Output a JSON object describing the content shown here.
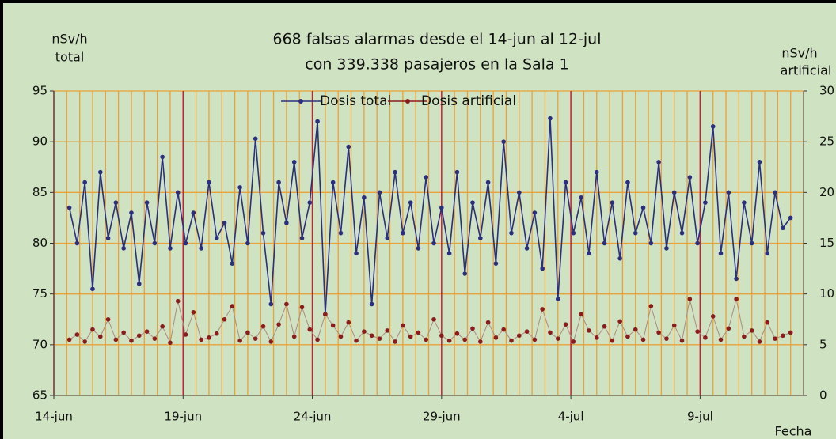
{
  "chart_data": {
    "type": "line",
    "title": [
      "668 falsas alarmas desde el 14-jun al 12-jul",
      "con 339.338 pasajeros en la Sala 1"
    ],
    "y_label": [
      "nSv/h",
      "total"
    ],
    "y2_label": [
      "nSv/h",
      "artificial"
    ],
    "x_label": "Fecha",
    "x": [
      0.6,
      0.9,
      1.2,
      1.5,
      1.8,
      2.1,
      2.4,
      2.7,
      3.0,
      3.3,
      3.6,
      3.9,
      4.2,
      4.5,
      4.8,
      5.1,
      5.4,
      5.7,
      6.0,
      6.3,
      6.6,
      6.9,
      7.2,
      7.5,
      7.8,
      8.1,
      8.4,
      8.7,
      9.0,
      9.3,
      9.6,
      9.9,
      10.2,
      10.5,
      10.8,
      11.1,
      11.4,
      11.7,
      12.0,
      12.3,
      12.6,
      12.9,
      13.2,
      13.5,
      13.8,
      14.1,
      14.4,
      14.7,
      15.0,
      15.3,
      15.6,
      15.9,
      16.2,
      16.5,
      16.8,
      17.1,
      17.4,
      17.7,
      18.0,
      18.3,
      18.6,
      18.9,
      19.2,
      19.5,
      19.8,
      20.1,
      20.4,
      20.7,
      21.0,
      21.3,
      21.6,
      21.9,
      22.2,
      22.5,
      22.8,
      23.1,
      23.4,
      23.7,
      24.0,
      24.3,
      24.6,
      24.9,
      25.2,
      25.5,
      25.8,
      26.1,
      26.4,
      26.7,
      27.0,
      27.3,
      27.6,
      27.9,
      28.2,
      28.5
    ],
    "series": [
      {
        "name": "Dosis total",
        "color": "#2b2f80",
        "axis": "y",
        "values": [
          83.5,
          80,
          86,
          75.5,
          87,
          80.5,
          84,
          79.5,
          83,
          76,
          84,
          80,
          88.5,
          79.5,
          85,
          80,
          83,
          79.5,
          86,
          80.5,
          82,
          78,
          85.5,
          80,
          90.3,
          81,
          74,
          86,
          82,
          88,
          80.5,
          84,
          92,
          73,
          86,
          81,
          89.5,
          79,
          84.5,
          74,
          85,
          80.5,
          87,
          81,
          84,
          79.5,
          86.5,
          80,
          83.5,
          79,
          87,
          77,
          84,
          80.5,
          86,
          78,
          90,
          81,
          85,
          79.5,
          83,
          77.5,
          92.3,
          74.5,
          86,
          81,
          84.5,
          79,
          87,
          80,
          84,
          78.5,
          86,
          81,
          83.5,
          80,
          88,
          79.5,
          85,
          81,
          86.5,
          80,
          84,
          91.5,
          79,
          85,
          76.5,
          84,
          80,
          88,
          79,
          85,
          81.5,
          82.5
        ]
      },
      {
        "name": "Dosis artificial",
        "color": "#8b1c1c",
        "axis": "y2",
        "values": [
          5.5,
          6,
          5.3,
          6.5,
          5.8,
          7.5,
          5.5,
          6.2,
          5.4,
          5.9,
          6.3,
          5.6,
          6.8,
          5.2,
          9.3,
          6,
          8.2,
          5.5,
          5.7,
          6.1,
          7.5,
          8.8,
          5.4,
          6.2,
          5.6,
          6.8,
          5.3,
          7,
          9,
          5.8,
          8.7,
          6.5,
          5.5,
          8,
          6.9,
          5.8,
          7.2,
          5.4,
          6.3,
          5.9,
          5.6,
          6.4,
          5.3,
          6.9,
          5.8,
          6.2,
          5.5,
          7.5,
          5.9,
          5.4,
          6.1,
          5.5,
          6.6,
          5.3,
          7.2,
          5.7,
          6.5,
          5.4,
          5.9,
          6.3,
          5.5,
          8.5,
          6.2,
          5.6,
          7,
          5.3,
          8,
          6.4,
          5.7,
          6.8,
          5.4,
          7.3,
          5.8,
          6.5,
          5.5,
          8.8,
          6.2,
          5.6,
          6.9,
          5.4,
          9.5,
          6.3,
          5.7,
          7.8,
          5.5,
          6.6,
          9.5,
          5.8,
          6.4,
          5.3,
          7.2,
          5.6,
          5.9,
          6.2
        ]
      }
    ],
    "xlim": [
      0,
      29
    ],
    "xticks": [
      {
        "value": 0,
        "label": "14-jun"
      },
      {
        "value": 5,
        "label": "19-jun"
      },
      {
        "value": 10,
        "label": "24-jun"
      },
      {
        "value": 15,
        "label": "29-jun"
      },
      {
        "value": 20,
        "label": "4-jul"
      },
      {
        "value": 25,
        "label": "9-jul"
      }
    ],
    "x_minor_step": 0.5,
    "ylim": [
      65,
      95
    ],
    "yticks": [
      65,
      70,
      75,
      80,
      85,
      90,
      95
    ],
    "y2lim": [
      0,
      30
    ],
    "y2ticks": [
      0,
      5,
      10,
      15,
      20,
      25,
      30
    ],
    "grid": true
  }
}
